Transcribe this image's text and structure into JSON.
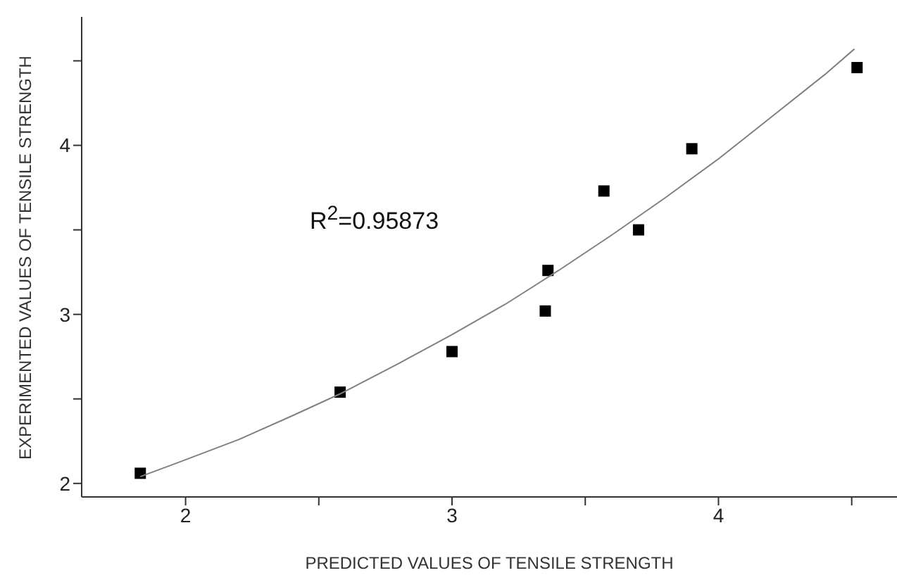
{
  "chart_data": {
    "type": "scatter",
    "xlabel": "PREDICTED VALUES OF TENSILE STRENGTH",
    "ylabel": "EXPERIMENTED VALUES OF TENSILE STRENGTH",
    "annotations": [
      "R$^{2}$=0.95873"
    ],
    "marker": "square",
    "xlim": [
      1.61,
      4.67
    ],
    "xticks": [
      2,
      {
        "value": 2.5,
        "label": null
      },
      3,
      {
        "value": 3.5,
        "label": null
      },
      4,
      {
        "value": 4.5,
        "label": null
      }
    ],
    "ylim": [
      1.92,
      4.76
    ],
    "yticks": [
      2,
      {
        "value": 2.5,
        "label": null
      },
      3,
      {
        "value": 3.5,
        "label": null
      },
      4,
      {
        "value": 4.5,
        "label": null
      }
    ],
    "series": [
      {
        "color": "#000000",
        "x": [
          1.83,
          2.58,
          3.0,
          3.35,
          3.36,
          3.57,
          3.7,
          3.9,
          4.52
        ],
        "values": [
          2.06,
          2.54,
          2.78,
          3.02,
          3.26,
          3.73,
          3.5,
          3.98,
          4.46
        ]
      },
      {
        "type": "line",
        "marker": "none",
        "color": "#808080",
        "x": [
          1.83,
          2.0,
          2.2,
          2.4,
          2.58,
          2.8,
          3.0,
          3.2,
          3.4,
          3.6,
          3.8,
          4.0,
          4.2,
          4.4,
          4.51
        ],
        "values": [
          2.04,
          2.14,
          2.26,
          2.4,
          2.53,
          2.71,
          2.88,
          3.06,
          3.26,
          3.47,
          3.69,
          3.92,
          4.17,
          4.42,
          4.57
        ]
      }
    ]
  }
}
